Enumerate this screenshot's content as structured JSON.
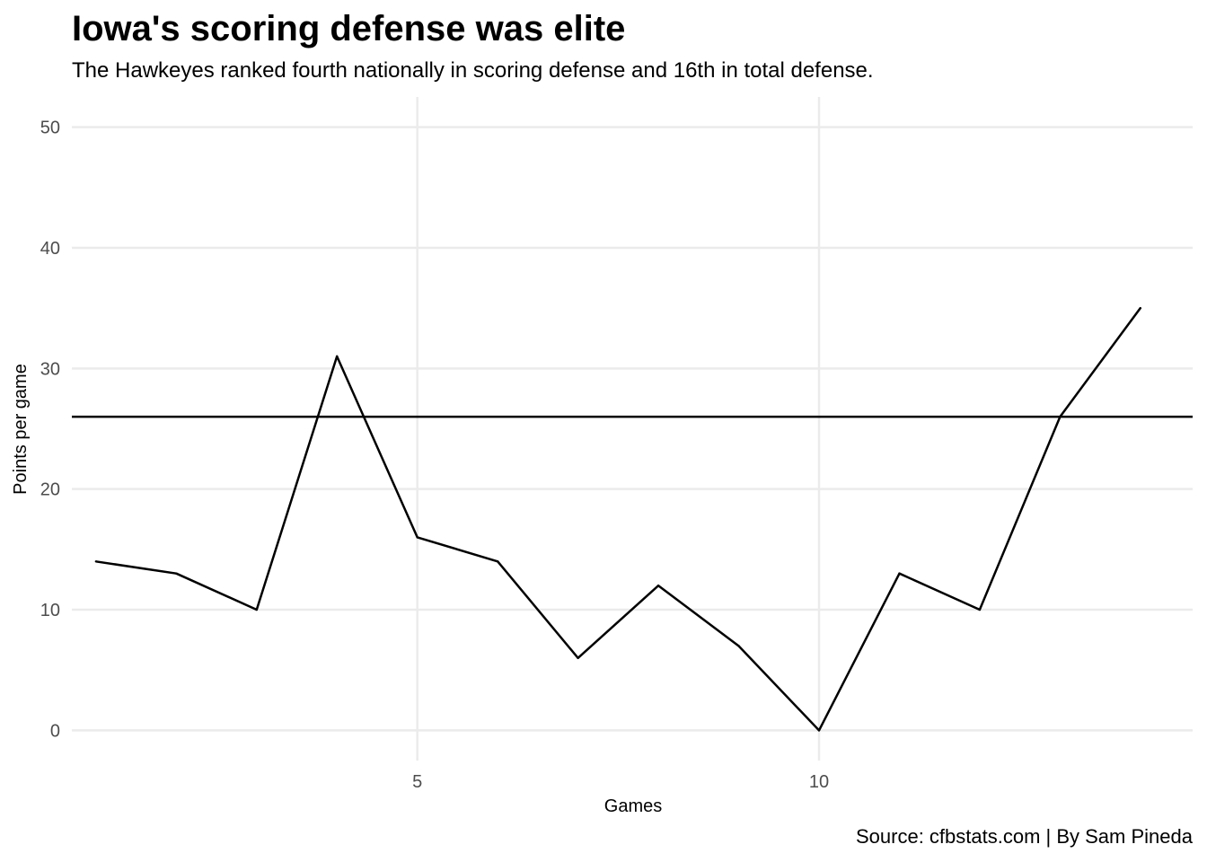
{
  "chart_data": {
    "type": "line",
    "title": "Iowa's scoring defense was elite",
    "subtitle": "The Hawkeyes ranked fourth nationally in scoring defense and 16th in total defense.",
    "caption": "Source: cfbstats.com | By Sam Pineda",
    "xlabel": "Games",
    "ylabel": "Points per game",
    "xlim": [
      0.7,
      14.65
    ],
    "ylim": [
      -2.5,
      52.5
    ],
    "x_ticks": [
      5,
      10
    ],
    "y_ticks": [
      0,
      10,
      20,
      30,
      40,
      50
    ],
    "grid": true,
    "series": [
      {
        "x": [
          1,
          2,
          3,
          4,
          5,
          6,
          7,
          8,
          9,
          10,
          11,
          12,
          13,
          14
        ],
        "values": [
          14,
          13,
          10,
          31,
          16,
          14,
          6,
          12,
          7,
          0,
          13,
          10,
          26,
          35
        ],
        "color": "#000000"
      }
    ],
    "reference_line": {
      "y": 26,
      "color": "#000000"
    }
  }
}
